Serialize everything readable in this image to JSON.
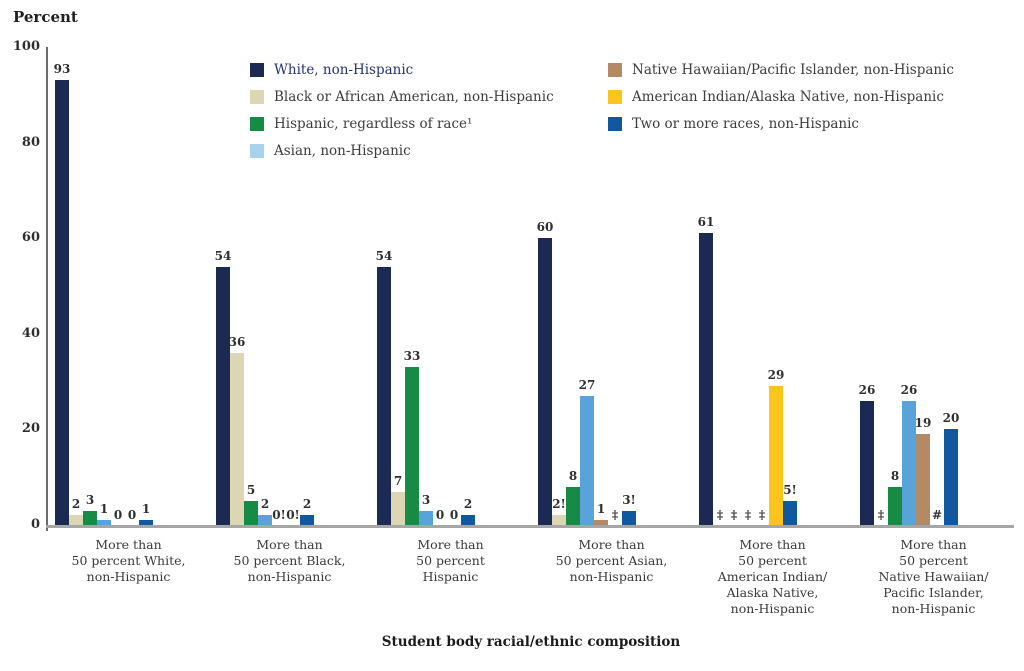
{
  "chart_data": {
    "type": "bar",
    "title": "",
    "ylabel": "Percent",
    "xlabel": "Student body racial/ethnic composition",
    "ylim": [
      0,
      100
    ],
    "yticks": [
      0,
      20,
      40,
      60,
      80,
      100
    ],
    "grid": false,
    "legend_position": "top-inside",
    "suppression_note_symbols": [
      "!",
      "‡",
      "#"
    ],
    "categories": [
      [
        "More than",
        "50 percent White,",
        "non-Hispanic"
      ],
      [
        "More than",
        "50 percent Black,",
        "non-Hispanic"
      ],
      [
        "More than",
        "50 percent",
        "Hispanic"
      ],
      [
        "More than",
        "50 percent Asian,",
        "non-Hispanic"
      ],
      [
        "More than",
        "50 percent",
        "American Indian/",
        "Alaska Native,",
        "non-Hispanic"
      ],
      [
        "More than",
        "50 percent",
        "Native Hawaiian/",
        "Pacific Islander,",
        "non-Hispanic"
      ]
    ],
    "series": [
      {
        "name": "White, non-Hispanic",
        "color": "#1b2a52",
        "legend_text_color": "#23366e",
        "values": [
          93,
          54,
          54,
          60,
          61,
          26
        ],
        "labels": [
          "93",
          "54",
          "54",
          "60",
          "61",
          "26"
        ]
      },
      {
        "name": "Black or African American, non-Hispanic",
        "color": "#ddd6b3",
        "values": [
          2,
          36,
          7,
          2,
          0,
          0
        ],
        "labels": [
          "2",
          "36",
          "7",
          "2!",
          "‡",
          "‡"
        ]
      },
      {
        "name": "Hispanic, regardless of race¹",
        "color": "#168b45",
        "values": [
          3,
          5,
          33,
          8,
          0,
          8
        ],
        "labels": [
          "3",
          "5",
          "33",
          "8",
          "‡",
          "8"
        ]
      },
      {
        "name": "Asian, non-Hispanic",
        "color": "#58a4da",
        "legend_swatch_color": "#a8d2ee",
        "values": [
          1,
          2,
          3,
          27,
          0,
          26
        ],
        "labels": [
          "1",
          "2",
          "3",
          "27",
          "‡",
          "26"
        ]
      },
      {
        "name": "Native Hawaiian/Pacific Islander, non-Hispanic",
        "color": "#b48a64",
        "values": [
          0,
          0,
          0,
          1,
          0,
          19
        ],
        "labels": [
          "0",
          "0!",
          "0",
          "1",
          "‡",
          "19"
        ]
      },
      {
        "name": "American Indian/Alaska Native, non-Hispanic",
        "color": "#fcc41d",
        "values": [
          0,
          0,
          0,
          0,
          29,
          0
        ],
        "labels": [
          "0",
          "0!",
          "0",
          "‡",
          "29",
          "#"
        ]
      },
      {
        "name": "Two or more races, non-Hispanic",
        "color": "#10589f",
        "values": [
          1,
          2,
          2,
          3,
          5,
          20
        ],
        "labels": [
          "1",
          "2",
          "2",
          "3!",
          "5!",
          "20"
        ]
      }
    ],
    "legend_columns": [
      [
        0,
        1,
        2,
        3
      ],
      [
        4,
        5,
        6
      ]
    ]
  }
}
